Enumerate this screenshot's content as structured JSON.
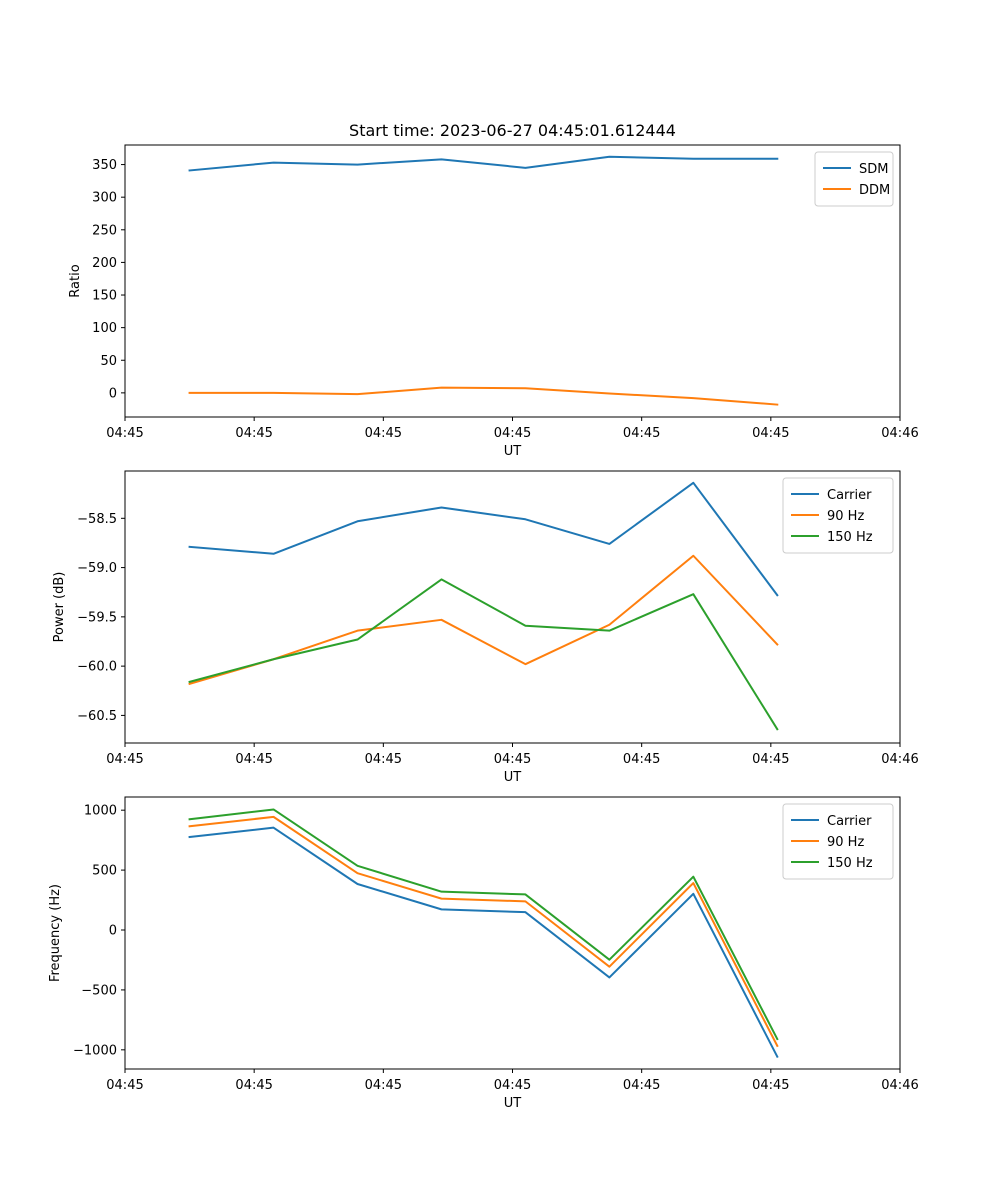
{
  "figure": {
    "title": "Start time: 2023-06-27 04:45:01.612444"
  },
  "colors": {
    "blue": "#1f77b4",
    "orange": "#ff7f0e",
    "green": "#2ca02c"
  },
  "chart_data": [
    {
      "type": "line",
      "title": "Start time: 2023-06-27 04:45:01.612444",
      "xlabel": "UT",
      "ylabel": "Ratio",
      "xlim": [
        0,
        6.0
      ],
      "ylim": [
        -37,
        380
      ],
      "x_tick_positions": [
        0,
        1,
        2,
        3,
        4,
        5,
        6
      ],
      "x_tick_labels": [
        "04:45",
        "04:45",
        "04:45",
        "04:45",
        "04:45",
        "04:45",
        "04:46"
      ],
      "y_ticks": [
        0,
        50,
        100,
        150,
        200,
        250,
        300,
        350
      ],
      "x": [
        0.5,
        1.15,
        1.8,
        2.45,
        3.1,
        3.75,
        4.4,
        5.05
      ],
      "series": [
        {
          "name": "SDM",
          "color": "#1f77b4",
          "values": [
            341,
            353,
            350,
            358,
            345,
            362,
            359,
            359
          ]
        },
        {
          "name": "DDM",
          "color": "#ff7f0e",
          "values": [
            0,
            0,
            -2,
            8,
            7,
            -1,
            -8,
            -18
          ]
        }
      ],
      "legend": "top-right",
      "grid": false
    },
    {
      "type": "line",
      "xlabel": "UT",
      "ylabel": "Power (dB)",
      "xlim": [
        0,
        6.0
      ],
      "ylim": [
        -60.78,
        -58.02
      ],
      "x_tick_positions": [
        0,
        1,
        2,
        3,
        4,
        5,
        6
      ],
      "x_tick_labels": [
        "04:45",
        "04:45",
        "04:45",
        "04:45",
        "04:45",
        "04:45",
        "04:46"
      ],
      "y_ticks": [
        -60.5,
        -60.0,
        -59.5,
        -59.0,
        -58.5
      ],
      "y_tick_labels": [
        "−60.5",
        "−60.0",
        "−59.5",
        "−59.0",
        "−58.5"
      ],
      "x": [
        0.5,
        1.15,
        1.8,
        2.45,
        3.1,
        3.75,
        4.4,
        5.05
      ],
      "series": [
        {
          "name": "Carrier",
          "color": "#1f77b4",
          "values": [
            -58.79,
            -58.86,
            -58.53,
            -58.39,
            -58.51,
            -58.76,
            -58.14,
            -59.28
          ]
        },
        {
          "name": "90 Hz",
          "color": "#ff7f0e",
          "values": [
            -60.18,
            -59.93,
            -59.64,
            -59.53,
            -59.98,
            -59.58,
            -58.88,
            -59.78
          ]
        },
        {
          "name": "150 Hz",
          "color": "#2ca02c",
          "values": [
            -60.16,
            -59.93,
            -59.73,
            -59.12,
            -59.59,
            -59.64,
            -59.27,
            -60.64
          ]
        }
      ],
      "legend": "top-right",
      "grid": false
    },
    {
      "type": "line",
      "xlabel": "UT",
      "ylabel": "Frequency (Hz)",
      "xlim": [
        0,
        6.0
      ],
      "ylim": [
        -1160,
        1110
      ],
      "x_tick_positions": [
        0,
        1,
        2,
        3,
        4,
        5,
        6
      ],
      "x_tick_labels": [
        "04:45",
        "04:45",
        "04:45",
        "04:45",
        "04:45",
        "04:45",
        "04:46"
      ],
      "y_ticks": [
        -1000,
        -500,
        0,
        500,
        1000
      ],
      "y_tick_labels": [
        "−1000",
        "−500",
        "0",
        "500",
        "1000"
      ],
      "x": [
        0.5,
        1.15,
        1.8,
        2.45,
        3.1,
        3.75,
        4.4,
        5.05
      ],
      "series": [
        {
          "name": "Carrier",
          "color": "#1f77b4",
          "values": [
            776,
            854,
            384,
            172,
            149,
            -396,
            302,
            -1057
          ]
        },
        {
          "name": "90 Hz",
          "color": "#ff7f0e",
          "values": [
            866,
            944,
            474,
            262,
            239,
            -306,
            392,
            -967
          ]
        },
        {
          "name": "150 Hz",
          "color": "#2ca02c",
          "values": [
            924,
            1006,
            536,
            320,
            297,
            -248,
            445,
            -910
          ]
        }
      ],
      "legend": "top-right",
      "grid": false
    }
  ]
}
